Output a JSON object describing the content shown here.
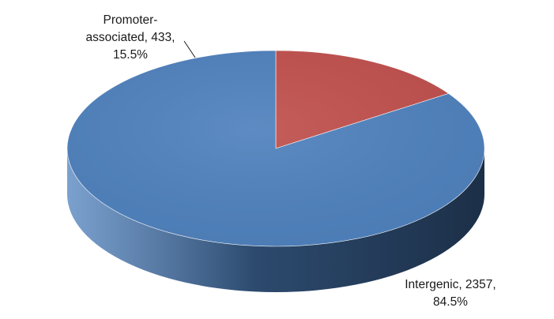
{
  "chart_data": {
    "type": "pie",
    "style": "3d",
    "title": "",
    "start_angle_deg": 0,
    "direction": "clockwise",
    "series": [
      {
        "slices": [
          {
            "category": "Promoter-associated",
            "value": 433,
            "percent": "15.5%",
            "color": "#C0504D",
            "side_color": "#7a2f2d",
            "label_lines": [
              "Promoter-",
              "associated, 433,",
              "15.5%"
            ]
          },
          {
            "category": "Intergenic",
            "value": 2357,
            "percent": "84.5%",
            "color": "#4F81BD",
            "side_color": "#2c4a6e",
            "label_lines": [
              "Intergenic, 2357,",
              "84.5%"
            ]
          }
        ]
      }
    ],
    "legend": "none"
  }
}
